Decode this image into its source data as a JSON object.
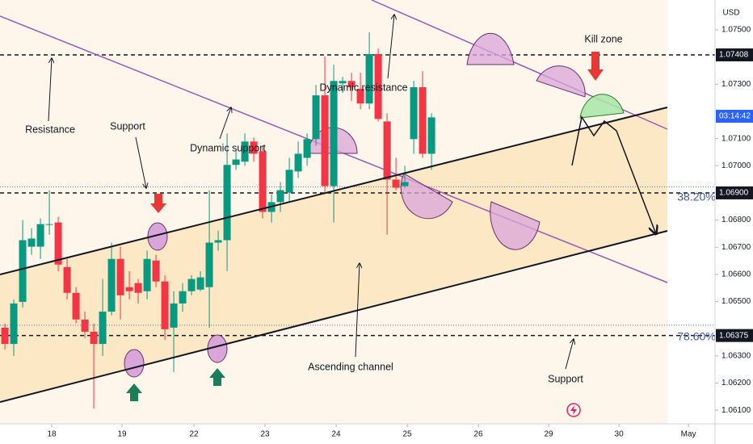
{
  "chart_data": {
    "type": "candlestick",
    "currency": "USD",
    "up_color": "#089981",
    "down_color": "#f23645",
    "open": [
      1.06404,
      1.06344,
      1.06499,
      1.06702,
      1.06702,
      1.06782,
      1.06791,
      1.06627,
      1.06532,
      1.06434,
      1.06389,
      1.06344,
      1.06463,
      1.06657,
      1.06553,
      1.06568,
      1.06538,
      1.06651,
      1.06574,
      1.06404,
      1.06493,
      1.06538,
      1.06544,
      1.06553,
      1.06717,
      1.06726,
      1.07003,
      1.07015,
      1.07089,
      1.07053,
      1.0683,
      1.06866,
      1.06901,
      1.06979,
      1.07029,
      1.07098,
      1.07259,
      1.06925,
      1.07303,
      1.07312,
      1.07283,
      1.07229,
      1.07411,
      1.07163,
      1.06949,
      1.06925,
      1.07098,
      1.07289,
      1.07044
    ],
    "high": [
      1.06419,
      1.06508,
      1.068,
      1.0677,
      1.06806,
      1.0691,
      1.06812,
      1.06657,
      1.06553,
      1.06463,
      1.06419,
      1.06583,
      1.06717,
      1.06702,
      1.06612,
      1.06583,
      1.06687,
      1.06672,
      1.06597,
      1.06538,
      1.06568,
      1.06597,
      1.06612,
      1.0691,
      1.06761,
      1.07119,
      1.07059,
      1.07119,
      1.07104,
      1.07074,
      1.06895,
      1.0694,
      1.07029,
      1.07089,
      1.07119,
      1.07297,
      1.07402,
      1.07372,
      1.07327,
      1.07342,
      1.07342,
      1.07491,
      1.07431,
      1.07193,
      1.07029,
      1.07,
      1.07312,
      1.07348,
      1.07193
    ],
    "low": [
      1.06323,
      1.063,
      1.06478,
      1.06672,
      1.06657,
      1.06746,
      1.06612,
      1.06508,
      1.06419,
      1.06365,
      1.06106,
      1.063,
      1.06449,
      1.06434,
      1.06508,
      1.06493,
      1.06508,
      1.06553,
      1.06359,
      1.0624,
      1.06463,
      1.06523,
      1.06538,
      1.06404,
      1.06687,
      1.06612,
      1.06985,
      1.07,
      1.07015,
      1.06806,
      1.06791,
      1.0683,
      1.06866,
      1.06955,
      1.07,
      1.07074,
      1.06895,
      1.06791,
      1.07268,
      1.07238,
      1.07208,
      1.07208,
      1.07163,
      1.06746,
      1.0691,
      1.06919,
      1.07044,
      1.07029,
      1.06985
    ],
    "close": [
      1.06344,
      1.06493,
      1.06726,
      1.06732,
      1.06785,
      1.06785,
      1.06636,
      1.06532,
      1.06434,
      1.06389,
      1.06344,
      1.06463,
      1.06657,
      1.06523,
      1.06538,
      1.06532,
      1.06657,
      1.06574,
      1.06398,
      1.06493,
      1.06538,
      1.06583,
      1.06589,
      1.06717,
      1.06726,
      1.07003,
      1.07023,
      1.07089,
      1.07044,
      1.0683,
      1.06866,
      1.0691,
      1.06985,
      1.07044,
      1.07098,
      1.07259,
      1.06925,
      1.07312,
      1.07312,
      1.07289,
      1.07229,
      1.07411,
      1.07172,
      1.06949,
      1.06919,
      1.0694,
      1.07289,
      1.07044,
      1.07178
    ],
    "xlim": [
      -0.55,
      79.9
    ],
    "xticks": [
      {
        "value": 5.27,
        "label": "18"
      },
      {
        "value": 13.18,
        "label": "19"
      },
      {
        "value": 21.27,
        "label": "22"
      },
      {
        "value": 29.27,
        "label": "23"
      },
      {
        "value": 37.27,
        "label": "24"
      },
      {
        "value": 45.27,
        "label": "25"
      },
      {
        "value": 53.27,
        "label": "26"
      },
      {
        "value": 61.18,
        "label": "29"
      },
      {
        "value": 69.09,
        "label": "30"
      },
      {
        "value": 76.91,
        "label": "May"
      }
    ],
    "ylim": [
      1.0605,
      1.0761
    ],
    "yticks": [
      {
        "value": 1.075,
        "label": "1.07500"
      },
      {
        "value": 1.073,
        "label": "1.07300"
      },
      {
        "value": 1.071,
        "label": "1.07100"
      },
      {
        "value": 1.07,
        "label": "1.07000"
      },
      {
        "value": 1.068,
        "label": "1.06800"
      },
      {
        "value": 1.067,
        "label": "1.06700"
      },
      {
        "value": 1.066,
        "label": "1.06600"
      },
      {
        "value": 1.065,
        "label": "1.06500"
      },
      {
        "value": 1.063,
        "label": "1.06300"
      },
      {
        "value": 1.062,
        "label": "1.06200"
      },
      {
        "value": 1.061,
        "label": "1.06100"
      }
    ],
    "levels": [
      {
        "value": 1.07408,
        "label": "1.07408"
      },
      {
        "value": 1.069,
        "label": "1.06900"
      },
      {
        "value": 1.06375,
        "label": "1.06375"
      }
    ],
    "dotted_levels": [
      1.06922,
      1.06413
    ],
    "countdown": "03:14:42",
    "fib_labels": [
      "38.20%",
      "78.60%"
    ],
    "annotations": [
      "Resistance",
      "Support",
      "Dynamic support",
      "Dynamic resistance",
      "Kill zone",
      "Ascending channel",
      "Support"
    ]
  }
}
